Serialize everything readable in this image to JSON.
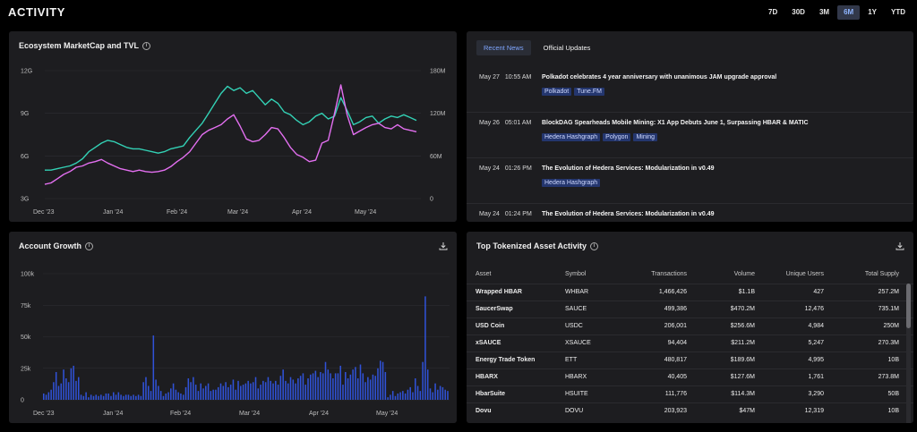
{
  "header": {
    "title": "ACTIVITY",
    "ranges": [
      {
        "label": "7D",
        "active": false
      },
      {
        "label": "30D",
        "active": false
      },
      {
        "label": "3M",
        "active": false
      },
      {
        "label": "6M",
        "active": true
      },
      {
        "label": "1Y",
        "active": false
      },
      {
        "label": "YTD",
        "active": false
      }
    ]
  },
  "colors": {
    "teal": "#33d1b5",
    "pink": "#e36ff0",
    "bar": "#3052d8",
    "panel": "#1d1d20"
  },
  "chart_data": [
    {
      "type": "line",
      "title": "Ecosystem MarketCap and TVL",
      "x_labels": [
        "Dec '23",
        "Jan '24",
        "Feb '24",
        "Mar '24",
        "Apr '24",
        "May '24"
      ],
      "y_left_ticks": [
        "12G",
        "9G",
        "6G",
        "3G"
      ],
      "y_right_ticks": [
        "180M",
        "120M",
        "60M",
        "0"
      ],
      "ylim_left": [
        3,
        12
      ],
      "ylim_right": [
        0,
        180
      ],
      "grid": true,
      "series": [
        {
          "axis": "left",
          "color": "#33d1b5",
          "values": [
            5.0,
            5.0,
            5.1,
            5.2,
            5.3,
            5.5,
            5.8,
            6.3,
            6.6,
            6.9,
            7.1,
            7.0,
            6.8,
            6.6,
            6.5,
            6.5,
            6.4,
            6.3,
            6.2,
            6.3,
            6.5,
            6.6,
            6.7,
            7.3,
            7.8,
            8.3,
            9.0,
            9.7,
            10.4,
            10.9,
            10.6,
            10.8,
            10.4,
            10.6,
            10.1,
            9.6,
            10.0,
            9.7,
            9.1,
            8.9,
            8.5,
            8.2,
            8.4,
            8.8,
            9.0,
            8.6,
            8.8,
            10.1,
            9.2,
            8.2,
            8.4,
            8.7,
            8.8,
            8.3,
            8.6,
            8.8,
            8.7,
            8.9,
            8.7,
            8.5
          ]
        },
        {
          "axis": "right",
          "color": "#e36ff0",
          "values": [
            20,
            22,
            28,
            34,
            38,
            44,
            46,
            50,
            52,
            55,
            50,
            46,
            42,
            40,
            38,
            40,
            38,
            37,
            38,
            40,
            45,
            52,
            58,
            66,
            78,
            90,
            96,
            100,
            104,
            112,
            118,
            102,
            84,
            80,
            82,
            90,
            100,
            98,
            86,
            72,
            62,
            58,
            52,
            54,
            78,
            82,
            120,
            160,
            118,
            90,
            95,
            100,
            104,
            106,
            100,
            98,
            104,
            98,
            96,
            94
          ]
        }
      ]
    },
    {
      "type": "bar",
      "title": "Account Growth",
      "x_labels": [
        "Dec '23",
        "Jan '24",
        "Feb '24",
        "Mar '24",
        "Apr '24",
        "May '24"
      ],
      "y_ticks": [
        "100k",
        "75k",
        "50k",
        "25k",
        "0"
      ],
      "ylim": [
        0,
        100
      ],
      "values": [
        5,
        4,
        6,
        8,
        14,
        22,
        11,
        13,
        24,
        17,
        14,
        25,
        27,
        15,
        18,
        4,
        3,
        6,
        2,
        4,
        3,
        4,
        3,
        4,
        3,
        5,
        5,
        3,
        6,
        4,
        6,
        4,
        3,
        4,
        4,
        3,
        4,
        3,
        4,
        3,
        14,
        18,
        11,
        7,
        51,
        16,
        11,
        7,
        3,
        5,
        6,
        9,
        13,
        8,
        6,
        5,
        4,
        10,
        17,
        14,
        18,
        12,
        7,
        13,
        9,
        11,
        13,
        7,
        8,
        8,
        10,
        13,
        11,
        14,
        10,
        12,
        16,
        8,
        15,
        11,
        12,
        13,
        15,
        13,
        14,
        18,
        9,
        12,
        15,
        14,
        18,
        15,
        13,
        15,
        12,
        19,
        24,
        15,
        13,
        18,
        16,
        13,
        17,
        19,
        21,
        12,
        17,
        20,
        21,
        23,
        18,
        22,
        21,
        30,
        24,
        21,
        17,
        21,
        21,
        27,
        12,
        22,
        17,
        20,
        24,
        26,
        17,
        28,
        21,
        14,
        18,
        16,
        20,
        19,
        25,
        31,
        30,
        22,
        2,
        4,
        7,
        3,
        5,
        6,
        7,
        5,
        8,
        10,
        6,
        17,
        11,
        7,
        30,
        82,
        24,
        9,
        6,
        13,
        8,
        11,
        10,
        8,
        7
      ]
    }
  ],
  "news": {
    "tabs": [
      {
        "label": "Recent News",
        "active": true
      },
      {
        "label": "Official Updates",
        "active": false
      }
    ],
    "items": [
      {
        "date": "May 27",
        "time": "10:55 AM",
        "title": "Polkadot celebrates 4 year anniversary with unanimous JAM upgrade approval",
        "tags": [
          "Polkadot",
          "Tune.FM"
        ]
      },
      {
        "date": "May 26",
        "time": "05:01 AM",
        "title": "BlockDAG Spearheads Mobile Mining: X1 App Debuts June 1, Surpassing HBAR & MATIC",
        "tags": [
          "Hedera Hashgraph",
          "Polygon",
          "Mining"
        ]
      },
      {
        "date": "May 24",
        "time": "01:26 PM",
        "title": "The Evolution of Hedera Services: Modularization in v0.49",
        "tags": [
          "Hedera Hashgraph"
        ]
      },
      {
        "date": "May 24",
        "time": "01:24 PM",
        "title": "The Evolution of Hedera Services: Modularization in v0.49",
        "tags": []
      }
    ]
  },
  "assets": {
    "title": "Top Tokenized Asset Activity",
    "columns": [
      "Asset",
      "Symbol",
      "Transactions",
      "Volume",
      "Unique Users",
      "Total Supply"
    ],
    "rows": [
      [
        "Wrapped HBAR",
        "WHBAR",
        "1,466,426",
        "$1.1B",
        "427",
        "257.2M"
      ],
      [
        "SaucerSwap",
        "SAUCE",
        "499,386",
        "$470.2M",
        "12,476",
        "735.1M"
      ],
      [
        "USD Coin",
        "USDC",
        "206,001",
        "$256.6M",
        "4,984",
        "250M"
      ],
      [
        "xSAUCE",
        "XSAUCE",
        "94,404",
        "$211.2M",
        "5,247",
        "270.3M"
      ],
      [
        "Energy Trade Token",
        "ETT",
        "480,817",
        "$189.6M",
        "4,995",
        "10B"
      ],
      [
        "HBARX",
        "HBARX",
        "40,405",
        "$127.6M",
        "1,761",
        "273.8M"
      ],
      [
        "HbarSuite",
        "HSUITE",
        "111,776",
        "$114.3M",
        "3,290",
        "50B"
      ],
      [
        "Dovu",
        "DOVU",
        "203,923",
        "$47M",
        "12,319",
        "10B"
      ]
    ]
  }
}
